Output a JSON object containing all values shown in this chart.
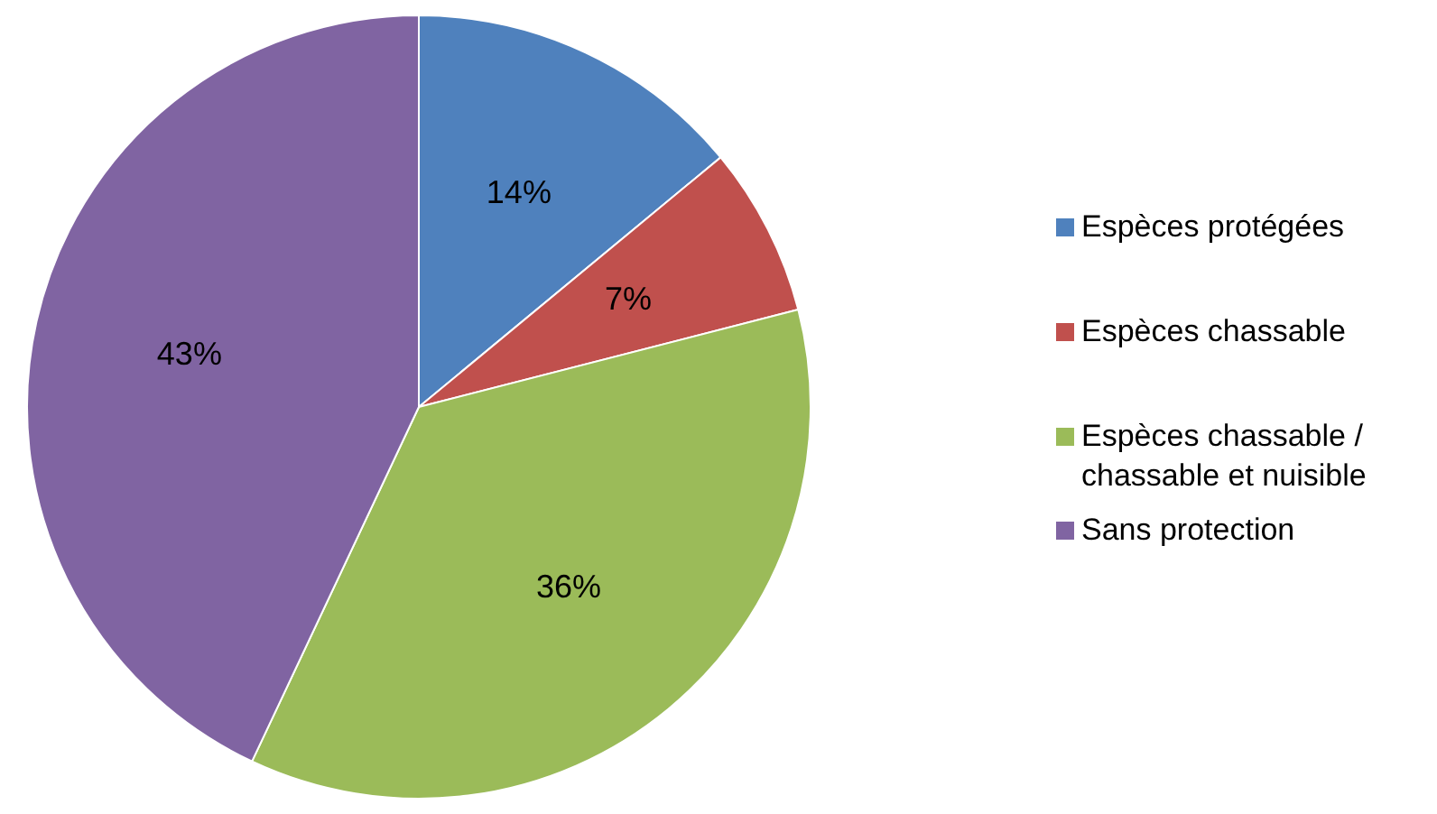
{
  "chart_data": {
    "type": "pie",
    "categories": [
      "Espèces protégées",
      "Espèces chassable",
      "Espèces chassable / chassable et nuisible",
      "Sans protection"
    ],
    "values": [
      14,
      7,
      36,
      43
    ],
    "colors": [
      "#4f81bd",
      "#c0504d",
      "#9bbb59",
      "#8064a2"
    ],
    "value_labels": [
      "14%",
      "7%",
      "36%",
      "43%"
    ],
    "legend": "right"
  }
}
